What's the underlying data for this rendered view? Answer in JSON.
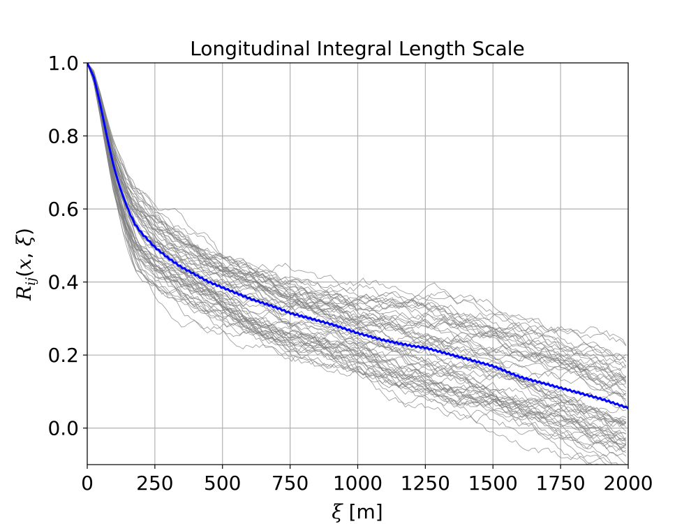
{
  "chart_data": {
    "type": "line",
    "title": "Longitudinal Integral Length Scale",
    "xlabel": "ξ [m]",
    "ylabel": "R_ij(x, ξ)",
    "xlim": [
      0,
      2000
    ],
    "ylim": [
      -0.1,
      1.0
    ],
    "grid": true,
    "legend": "none",
    "x_ticks": [
      "0",
      "250",
      "500",
      "750",
      "1000",
      "1250",
      "1500",
      "1750",
      "2000"
    ],
    "y_ticks": [
      "0.0",
      "0.2",
      "0.4",
      "0.6",
      "0.8",
      "1.0"
    ],
    "colors": {
      "mean": "#0000ff",
      "samples": "#808080",
      "grid": "#b0b0b0"
    },
    "mean_series": {
      "x": [
        0,
        25,
        50,
        75,
        100,
        125,
        150,
        175,
        200,
        250,
        300,
        350,
        400,
        450,
        500,
        600,
        700,
        750,
        800,
        900,
        1000,
        1100,
        1200,
        1250,
        1300,
        1400,
        1500,
        1600,
        1700,
        1750,
        1800,
        1900,
        2000
      ],
      "y": [
        1.0,
        0.96,
        0.88,
        0.79,
        0.71,
        0.65,
        0.6,
        0.56,
        0.535,
        0.495,
        0.465,
        0.44,
        0.42,
        0.4,
        0.385,
        0.355,
        0.33,
        0.315,
        0.305,
        0.285,
        0.26,
        0.24,
        0.225,
        0.22,
        0.21,
        0.19,
        0.17,
        0.14,
        0.12,
        0.11,
        0.1,
        0.08,
        0.055
      ]
    },
    "sample_series": {
      "count": 60,
      "xmax": 2000,
      "start": 1.0,
      "end_range": [
        -0.1,
        0.2
      ],
      "mid_range_at_500": [
        0.3,
        0.5
      ]
    }
  }
}
